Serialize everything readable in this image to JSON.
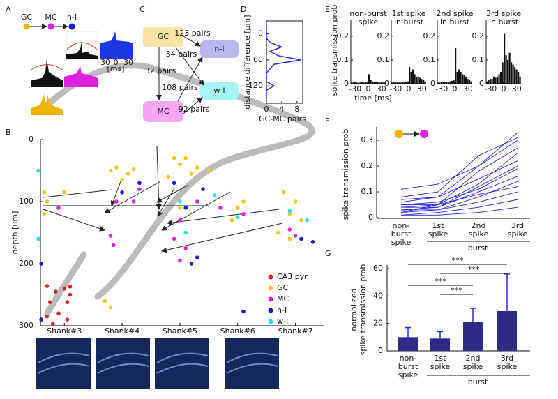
{
  "panel_labels": [
    "A",
    "B",
    "C",
    "D",
    "E",
    "F",
    "G"
  ],
  "panel_a": {
    "nodes": [
      "GC",
      "MC",
      "n-I"
    ],
    "xticks": [
      "-30",
      "0",
      "30"
    ],
    "x_unit": "[ms]"
  },
  "panel_c": {
    "nodes": [
      "GC",
      "n-I",
      "w-I",
      "MC"
    ],
    "edges": [
      "123 pairs",
      "34 pairs",
      "32 pairs",
      "108 pairs",
      "92 pairs"
    ]
  },
  "chart_data": [
    {
      "type": "scatter",
      "ylabel": "depth [um]",
      "xlim": [
        -0.45,
        4.5
      ],
      "xticks": [
        {
          "value": 0,
          "label": "Shank#3"
        },
        {
          "value": 1,
          "label": "Shank#4"
        },
        {
          "value": 2,
          "label": "Shank#5"
        },
        {
          "value": 3,
          "label": "Shank#6"
        },
        {
          "value": 4,
          "label": "Shank#7"
        }
      ],
      "ylim": [
        0,
        300
      ],
      "yticks": [
        0,
        100,
        200,
        300
      ],
      "y_inverted": true,
      "legend": "lower right",
      "series": [
        {
          "name": "CA3 pyr",
          "color": "#e02020",
          "x": [
            -0.3,
            -0.15,
            0.0,
            0.1,
            -0.25,
            0.05,
            -0.3,
            -0.1,
            0.05,
            -0.2,
            0.1
          ],
          "values": [
            236,
            245,
            240,
            237,
            262,
            262,
            285,
            280,
            290,
            297,
            250
          ]
        },
        {
          "name": "GC",
          "color": "#f5c518",
          "x": [
            -0.35,
            -0.35,
            -0.3,
            0.0,
            0.8,
            0.9,
            1.1,
            1.2,
            1.3,
            0.9,
            0.7,
            0.8,
            1.0,
            1.9,
            2.0,
            2.1,
            1.8,
            2.2,
            2.0,
            2.3,
            2.5,
            3.0,
            2.9,
            3.1,
            3.8,
            3.9,
            4.0,
            4.1,
            3.7,
            3.9
          ],
          "values": [
            85,
            120,
            100,
            85,
            50,
            45,
            55,
            48,
            70,
            100,
            260,
            270,
            65,
            30,
            40,
            30,
            60,
            55,
            110,
            45,
            50,
            110,
            130,
            100,
            85,
            120,
            100,
            130,
            150,
            160
          ]
        },
        {
          "name": "MC",
          "color": "#e020e0",
          "x": [
            -0.1,
            0.9,
            0.8,
            0.85,
            1.2,
            1.3,
            2.0,
            1.9,
            2.1,
            2.0,
            2.3,
            2.7,
            3.1,
            3.9,
            4.0
          ],
          "values": [
            110,
            100,
            155,
            170,
            100,
            80,
            130,
            160,
            175,
            195,
            100,
            110,
            120,
            145,
            155
          ]
        },
        {
          "name": "n-I",
          "color": "#1a1ad0",
          "x": [
            -0.4,
            -0.4,
            1.0,
            1.3,
            1.9,
            2.1,
            2.3,
            2.2,
            2.4,
            3.1,
            4.3,
            4.1
          ],
          "values": [
            200,
            290,
            85,
            70,
            70,
            110,
            190,
            200,
            80,
            277,
            165,
            160
          ]
        },
        {
          "name": "w-I",
          "color": "#20e0f0",
          "x": [
            -0.45,
            -0.45,
            2.0,
            2.1,
            2.6,
            3.0,
            3.9,
            4.2
          ],
          "values": [
            50,
            160,
            100,
            150,
            90,
            125,
            115,
            130
          ]
        }
      ]
    },
    {
      "type": "line",
      "orientation": "vertical",
      "ylabel": "distance difference [μm]",
      "xlabel": "GC-MC pairs",
      "x": [
        -20,
        -5,
        10,
        20,
        30,
        40,
        50,
        60,
        70,
        80,
        90,
        100,
        110,
        120,
        130,
        140,
        150
      ],
      "values": [
        0,
        0,
        0,
        1,
        4,
        1,
        3,
        9,
        2,
        1,
        0,
        0,
        0,
        2,
        0,
        0,
        0
      ],
      "color": "#2a2ad8",
      "xlim": [
        0,
        9.5
      ],
      "xticks": [
        0,
        4,
        8
      ],
      "ylim": [
        -30,
        160
      ],
      "yticks": [
        0,
        60,
        120
      ],
      "y_inverted": true
    },
    {
      "type": "histogram",
      "ylabel": "spike transmission prob",
      "xlabel": "time [ms]",
      "bins": [
        -40,
        -36,
        -32,
        -28,
        -24,
        -20,
        -16,
        -12,
        -8,
        -4,
        0,
        4,
        8,
        12,
        16,
        20,
        24,
        28,
        32,
        36,
        40
      ],
      "xlim": [
        -40,
        40
      ],
      "xticks": [
        -30,
        0,
        30
      ],
      "ylim": [
        0,
        0.27
      ],
      "yticks": [
        0,
        0.1,
        0.2
      ],
      "color": "#111111",
      "panels": [
        {
          "title": "non-burst spike",
          "values": [
            0.005,
            0.005,
            0.006,
            0.005,
            0.004,
            0.005,
            0.006,
            0.005,
            0.006,
            0.006,
            0.04,
            0.015,
            0.01,
            0.008,
            0.006,
            0.006,
            0.005,
            0.005,
            0.005,
            0.005
          ]
        },
        {
          "title": "1st spike in burst",
          "values": [
            0.005,
            0.006,
            0.005,
            0.006,
            0.005,
            0.005,
            0.006,
            0.007,
            0.008,
            0.01,
            0.07,
            0.05,
            0.06,
            0.04,
            0.03,
            0.03,
            0.025,
            0.02,
            0.015,
            0.01
          ]
        },
        {
          "title": "2nd spike in burst",
          "values": [
            0.005,
            0.005,
            0.006,
            0.006,
            0.008,
            0.007,
            0.008,
            0.01,
            0.012,
            0.015,
            0.15,
            0.05,
            0.06,
            0.05,
            0.04,
            0.035,
            0.03,
            0.02,
            0.015,
            0.01
          ]
        },
        {
          "title": "3rd spike in burst",
          "values": [
            0.01,
            0.015,
            0.02,
            0.02,
            0.03,
            0.025,
            0.03,
            0.04,
            0.05,
            0.09,
            0.21,
            0.12,
            0.1,
            0.13,
            0.09,
            0.08,
            0.07,
            0.06,
            0.05,
            0.03
          ]
        }
      ]
    },
    {
      "type": "line",
      "ylabel": "spike transmission prob",
      "categories": [
        "non-burst spike",
        "1st spike",
        "2nd spike",
        "3rd spike"
      ],
      "group_label": "burst",
      "color": "#2020d8",
      "ylim": [
        0,
        0.33
      ],
      "yticks": [
        0,
        0.1,
        0.2,
        0.3
      ],
      "series": [
        {
          "values": [
            0.11,
            0.13,
            0.2,
            0.33
          ]
        },
        {
          "values": [
            0.08,
            0.1,
            0.24,
            0.31
          ]
        },
        {
          "values": [
            0.06,
            0.08,
            0.2,
            0.3
          ]
        },
        {
          "values": [
            0.05,
            0.05,
            0.18,
            0.27
          ]
        },
        {
          "values": [
            0.04,
            0.05,
            0.13,
            0.25
          ]
        },
        {
          "values": [
            0.04,
            0.04,
            0.12,
            0.2
          ]
        },
        {
          "values": [
            0.03,
            0.04,
            0.1,
            0.16
          ]
        },
        {
          "values": [
            0.03,
            0.03,
            0.08,
            0.14
          ]
        },
        {
          "values": [
            0.02,
            0.05,
            0.09,
            0.12
          ]
        },
        {
          "values": [
            0.02,
            0.03,
            0.06,
            0.1
          ]
        },
        {
          "values": [
            0.01,
            0.02,
            0.04,
            0.07
          ]
        },
        {
          "values": [
            0.01,
            0.01,
            0.02,
            0.04
          ]
        },
        {
          "values": [
            0.07,
            0.08,
            0.15,
            0.22
          ]
        },
        {
          "values": [
            0.05,
            0.06,
            0.11,
            0.19
          ]
        }
      ]
    },
    {
      "type": "bar",
      "ylabel": [
        "normalized",
        "spike transmission prob"
      ],
      "categories": [
        "non-burst spike",
        "1st spike",
        "2nd spike",
        "3rd spike"
      ],
      "group_label": "burst",
      "values": [
        10,
        9,
        21,
        29
      ],
      "errors": [
        7,
        5,
        10,
        27
      ],
      "color": "#2e2a85",
      "error_color": "#2a2ad8",
      "ylim": [
        0,
        60
      ],
      "yticks": [
        0,
        20,
        40,
        60
      ],
      "significance_labels": [
        "***",
        "***",
        "***",
        "***"
      ]
    }
  ]
}
